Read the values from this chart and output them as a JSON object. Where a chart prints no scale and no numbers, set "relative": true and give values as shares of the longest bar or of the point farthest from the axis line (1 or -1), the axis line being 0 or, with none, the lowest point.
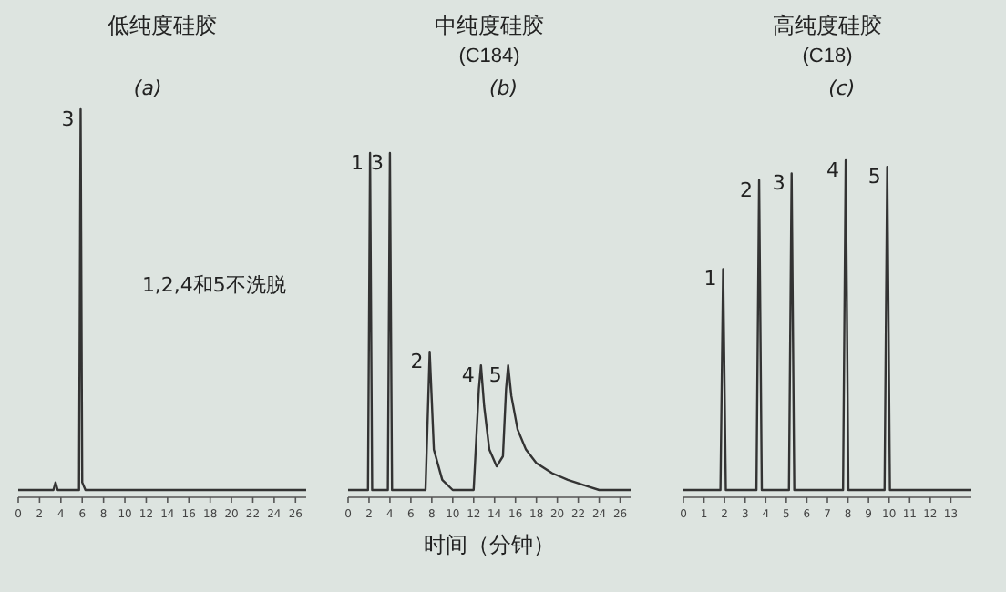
{
  "chart_data": [
    {
      "type": "line",
      "title": "低纯度硅胶",
      "relative": true,
      "xlim": [
        0,
        27
      ],
      "xticks": [
        0,
        2,
        4,
        6,
        8,
        10,
        12,
        14,
        16,
        18,
        20,
        22,
        24,
        26
      ],
      "series": [
        {
          "color": "#333333",
          "x": [
            0,
            3.3,
            3.5,
            3.7,
            5.7,
            5.85,
            6.0,
            6.3,
            27
          ],
          "values": [
            0,
            0,
            0.02,
            0,
            0,
            1,
            0.02,
            0,
            0
          ]
        }
      ],
      "annotations": [
        {
          "text": "3",
          "x": 5.85,
          "y": 1
        },
        "(a)",
        "1,2,4和5不洗脱"
      ]
    },
    {
      "type": "line",
      "title": "中纯度硅胶",
      "subtitle": "(C184)",
      "xlabel": "时间（分钟）",
      "relative": true,
      "xlim": [
        0,
        27
      ],
      "xticks": [
        0,
        2,
        4,
        6,
        8,
        10,
        12,
        14,
        16,
        18,
        20,
        22,
        24,
        26
      ],
      "series": [
        {
          "color": "#333333",
          "x": [
            0,
            1.9,
            2.1,
            2.3,
            3.8,
            4.0,
            4.2,
            7.4,
            7.8,
            8.2,
            9,
            10,
            12.0,
            12.5,
            12.7,
            13.0,
            13.5,
            14.2,
            14.8,
            15.1,
            15.3,
            15.6,
            16.2,
            17,
            18,
            19.5,
            21,
            23,
            24,
            27
          ],
          "values": [
            0,
            0,
            1,
            0,
            0,
            1,
            0,
            0,
            0.41,
            0.12,
            0.03,
            0,
            0,
            0.3,
            0.37,
            0.25,
            0.12,
            0.07,
            0.1,
            0.3,
            0.37,
            0.28,
            0.18,
            0.12,
            0.08,
            0.05,
            0.03,
            0.01,
            0,
            0
          ]
        }
      ],
      "annotations": [
        {
          "text": "1",
          "x": 2.1,
          "y": 1
        },
        {
          "text": "3",
          "x": 4.0,
          "y": 1
        },
        {
          "text": "2",
          "x": 7.8,
          "y": 0.41
        },
        {
          "text": "4",
          "x": 12.7,
          "y": 0.37
        },
        {
          "text": "5",
          "x": 15.3,
          "y": 0.37
        },
        "(b)"
      ]
    },
    {
      "type": "line",
      "title": "高纯度硅胶",
      "subtitle": "(C18)",
      "relative": true,
      "xlim": [
        0,
        14
      ],
      "xticks": [
        0,
        1,
        2,
        3,
        4,
        5,
        6,
        7,
        8,
        9,
        10,
        11,
        12,
        13
      ],
      "series": [
        {
          "color": "#333333",
          "x": [
            0,
            1.8,
            1.93,
            2.06,
            3.55,
            3.68,
            3.81,
            5.13,
            5.26,
            5.39,
            7.76,
            7.89,
            8.02,
            9.78,
            9.91,
            10.04,
            14
          ],
          "values": [
            0,
            0,
            0.67,
            0,
            0,
            0.94,
            0,
            0,
            0.96,
            0,
            0,
            1,
            0,
            0,
            0.98,
            0,
            0
          ]
        }
      ],
      "annotations": [
        {
          "text": "1",
          "x": 1.93,
          "y": 0.67
        },
        {
          "text": "2",
          "x": 3.68,
          "y": 0.94
        },
        {
          "text": "3",
          "x": 5.26,
          "y": 0.96
        },
        {
          "text": "4",
          "x": 7.89,
          "y": 1
        },
        {
          "text": "5",
          "x": 9.91,
          "y": 0.98
        },
        "(c)"
      ]
    }
  ]
}
